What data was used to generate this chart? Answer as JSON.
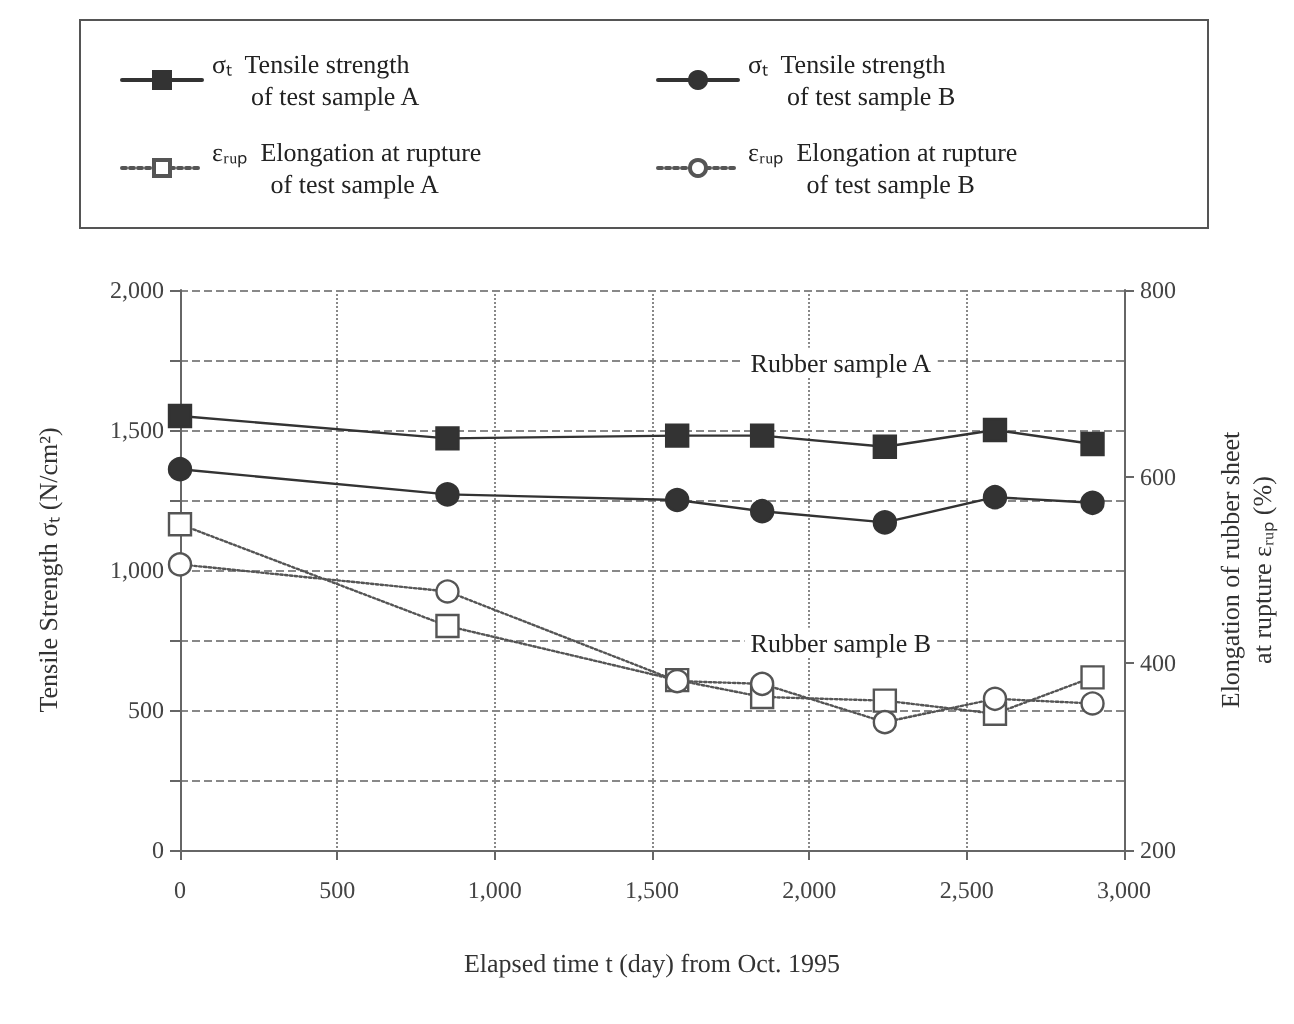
{
  "chart_data": {
    "type": "line",
    "xlabel": "Elapsed time t (day) from Oct. 1995",
    "ylabel": "Tensile Strength σₜ (N/cm²)",
    "y2label": "Elongation of rubber sheet\nat rupture εᵣᵤₚ (%)",
    "x": [
      0,
      850,
      1580,
      1850,
      2240,
      2590,
      2900
    ],
    "series": [
      {
        "name": "σₜ  Tensile strength\n      of test sample A",
        "color": "#333333",
        "marker": "square",
        "line_style": "solid",
        "values": [
          1550,
          1470,
          1480,
          1480,
          1440,
          1500,
          1450
        ]
      },
      {
        "name": "σₜ  Tensile strength\n      of test sample B",
        "color": "#333333",
        "marker": "circle",
        "line_style": "solid",
        "values": [
          1360,
          1270,
          1250,
          1210,
          1170,
          1260,
          1240
        ]
      },
      {
        "name": "εᵣᵤₚ  Elongation at rupture\n         of test sample A",
        "color": "#555555",
        "marker": "square",
        "line_style": "dotted",
        "axis": "y2",
        "values": [
          549,
          440,
          382,
          364,
          360,
          346,
          385
        ]
      },
      {
        "name": "εᵣᵤₚ  Elongation at rupture\n         of test sample B",
        "color": "#555555",
        "marker": "circle",
        "line_style": "dotted",
        "axis": "y2",
        "values": [
          506,
          477,
          381,
          378,
          337,
          362,
          357
        ]
      }
    ],
    "xlim": [
      0,
      3000
    ],
    "xticks": [
      0,
      500,
      {
        "value": 1000,
        "label": "1,000"
      },
      {
        "value": 1500,
        "label": "1,500"
      },
      {
        "value": 2000,
        "label": "2,000"
      },
      {
        "value": 2500,
        "label": "2,500"
      },
      {
        "value": 3000,
        "label": "3,000"
      }
    ],
    "ylim": [
      0,
      2000
    ],
    "yticks": [
      0,
      {
        "value": 250,
        "label": null
      },
      500,
      {
        "value": 750,
        "label": null
      },
      {
        "value": 1000,
        "label": "1,000"
      },
      {
        "value": 1250,
        "label": null
      },
      {
        "value": 1500,
        "label": "1,500"
      },
      {
        "value": 1750,
        "label": null
      },
      {
        "value": 2000,
        "label": "2,000"
      }
    ],
    "y2lim": [
      200,
      800
    ],
    "y2ticks": [
      200,
      400,
      600,
      800
    ],
    "annotations": [
      "Rubber sample A",
      "Rubber sample B"
    ],
    "grid": true,
    "legend": "top"
  }
}
